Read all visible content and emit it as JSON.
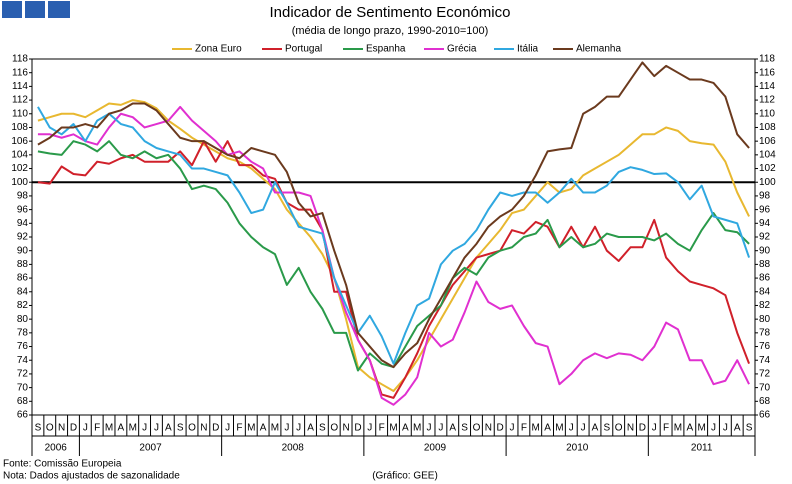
{
  "chart_data": {
    "type": "line",
    "title": "Indicador de Sentimento Económico",
    "subtitle": "(média de longo prazo, 1990-2010=100)",
    "categories": [
      "S",
      "O",
      "N",
      "D",
      "J",
      "F",
      "M",
      "A",
      "M",
      "J",
      "J",
      "A",
      "S",
      "O",
      "N",
      "D",
      "J",
      "F",
      "M",
      "A",
      "M",
      "J",
      "J",
      "A",
      "S",
      "O",
      "N",
      "D",
      "J",
      "F",
      "M",
      "A",
      "M",
      "J",
      "J",
      "A",
      "S",
      "O",
      "N",
      "D",
      "J",
      "F",
      "M",
      "A",
      "M",
      "J",
      "J",
      "A",
      "S",
      "O",
      "N",
      "D",
      "J",
      "F",
      "M",
      "A",
      "M",
      "J",
      "J",
      "A",
      "S"
    ],
    "years": [
      "2006",
      "2007",
      "2008",
      "2009",
      "2010",
      "2011"
    ],
    "series": [
      {
        "name": "Zona Euro",
        "color": "#e8b830",
        "values": [
          109,
          109.5,
          110,
          110,
          109.5,
          110.5,
          111.5,
          111.3,
          112,
          111.7,
          110.8,
          109,
          107.8,
          106.5,
          105.5,
          104.5,
          103.5,
          103,
          102,
          100.5,
          99,
          96,
          94,
          92,
          89.5,
          86,
          80,
          73,
          71.5,
          70.5,
          69.5,
          71.5,
          74,
          77,
          80,
          83,
          86,
          89,
          91,
          93,
          95.5,
          96,
          98,
          100,
          98.5,
          99,
          101,
          102,
          103,
          104,
          105.5,
          107,
          107,
          108,
          107.5,
          106,
          105.7,
          105.5,
          103,
          98.5,
          95
        ]
      },
      {
        "name": "Portugal",
        "color": "#d0202a",
        "values": [
          100,
          99.8,
          102.3,
          101.2,
          101,
          103,
          102.7,
          103.5,
          104,
          103,
          103,
          103,
          104.5,
          102.5,
          106,
          103,
          106,
          102.5,
          102.5,
          101,
          100.5,
          97,
          96,
          96,
          93,
          84,
          84,
          77,
          74,
          69,
          68.5,
          71.5,
          75,
          79,
          82,
          85,
          87,
          89,
          89.5,
          90,
          93,
          92.5,
          94.2,
          93.5,
          90.5,
          93.5,
          90.5,
          93.5,
          90,
          88.5,
          90.5,
          90.5,
          94.5,
          89,
          87,
          85.5,
          85,
          84.5,
          83.5,
          78,
          73.5
        ]
      },
      {
        "name": "Espanha",
        "color": "#2a9a4a",
        "values": [
          104.5,
          104.2,
          104,
          106,
          105.5,
          104.5,
          106,
          104,
          103.5,
          104.5,
          103.5,
          104,
          102,
          99,
          99.5,
          99,
          97,
          94,
          92,
          90.5,
          89.5,
          85,
          87.5,
          84,
          81.5,
          78,
          78,
          72.5,
          75,
          73.5,
          73,
          76,
          79,
          80.5,
          82,
          86,
          87.5,
          86.5,
          89,
          90,
          90.5,
          92,
          92.5,
          94.5,
          90.5,
          92,
          90.5,
          91,
          92.5,
          92,
          92,
          92,
          91.5,
          92.5,
          91,
          90,
          93,
          95.5,
          93,
          92.7,
          91
        ]
      },
      {
        "name": "Grécia",
        "color": "#e030d0",
        "values": [
          107,
          107,
          106.5,
          107,
          106,
          105.5,
          108,
          110,
          109.5,
          108,
          108.5,
          109,
          111,
          109,
          107.5,
          106,
          104,
          104.5,
          103,
          102,
          98.5,
          98.5,
          98.5,
          98,
          93,
          86,
          81,
          77,
          74,
          68.5,
          67.5,
          69,
          71.5,
          78,
          76,
          77,
          81,
          85.5,
          82.5,
          81.5,
          82,
          79,
          76.5,
          76,
          70.5,
          72,
          74,
          75,
          74.3,
          75,
          74.8,
          74,
          76,
          79.5,
          78.5,
          74,
          74,
          70.5,
          71,
          74,
          70.5
        ]
      },
      {
        "name": "Itália",
        "color": "#30a8e0",
        "values": [
          111,
          108,
          107,
          108.5,
          106,
          109,
          110,
          108.5,
          108,
          106,
          105,
          104.5,
          104,
          102,
          102,
          101.5,
          101,
          98.5,
          95.5,
          96,
          100,
          97,
          93.5,
          93,
          92.5,
          86,
          82,
          78,
          80.5,
          77.5,
          73.5,
          78,
          82,
          83,
          88,
          90,
          91,
          93,
          96,
          98.5,
          98,
          98.5,
          98.5,
          97,
          98.5,
          100.5,
          98.5,
          98.5,
          99.5,
          101.5,
          102.2,
          101.8,
          101.2,
          101.3,
          100,
          97.5,
          99.5,
          95,
          94.5,
          94,
          89
        ]
      },
      {
        "name": "Alemanha",
        "color": "#6b3a1e",
        "values": [
          105.5,
          106.5,
          108,
          108,
          108.5,
          108,
          110,
          110.5,
          111.5,
          111.5,
          110.5,
          108.5,
          106.5,
          106,
          106,
          105,
          104,
          103.5,
          105,
          104.5,
          104,
          101.5,
          97,
          95,
          95.5,
          90,
          85,
          78,
          76,
          74,
          73,
          75,
          76.5,
          80,
          83,
          86,
          89,
          91,
          93.5,
          95,
          96,
          98,
          101,
          104.5,
          104.8,
          105,
          110,
          111,
          112.5,
          112.5,
          115,
          117.5,
          115.5,
          117,
          116,
          115,
          115,
          114.5,
          112.5,
          107,
          105
        ]
      }
    ],
    "ylim": [
      66,
      118
    ],
    "yticks": [
      66,
      68,
      70,
      72,
      74,
      76,
      78,
      80,
      82,
      84,
      86,
      88,
      90,
      92,
      94,
      96,
      98,
      100,
      102,
      104,
      106,
      108,
      110,
      112,
      114,
      116,
      118
    ],
    "reference_line": 100,
    "source": "Fonte: Comissão Europeia",
    "note": "Nota: Dados ajustados de sazonalidade",
    "credit": "(Gráfico: GEE)"
  }
}
